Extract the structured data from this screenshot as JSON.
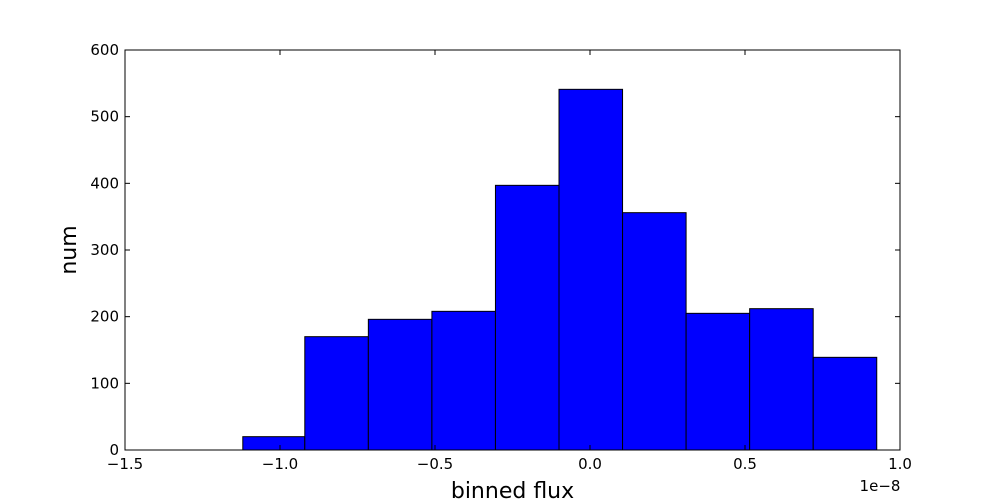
{
  "chart_data": {
    "type": "bar",
    "subtype": "histogram",
    "xlabel": "binned flux",
    "ylabel": "num",
    "x_offset_label": "1e−8",
    "xlim": [
      -1.5,
      1.0
    ],
    "ylim": [
      0,
      600
    ],
    "xticks": [
      -1.5,
      -1.0,
      -0.5,
      0.0,
      0.5,
      1.0
    ],
    "xtick_labels": [
      "−1.5",
      "−1.0",
      "−0.5",
      "0.0",
      "0.5",
      "1.0"
    ],
    "yticks": [
      0,
      100,
      200,
      300,
      400,
      500,
      600
    ],
    "ytick_labels": [
      "0",
      "100",
      "200",
      "300",
      "400",
      "500",
      "600"
    ],
    "bin_edges": [
      -1.12,
      -0.92,
      -0.715,
      -0.51,
      -0.305,
      -0.1,
      0.105,
      0.31,
      0.515,
      0.72,
      0.925
    ],
    "counts": [
      20,
      170,
      196,
      208,
      397,
      541,
      356,
      205,
      212,
      139
    ],
    "bar_color": "#0000ff",
    "edge_color": "#000000",
    "grid": false
  }
}
